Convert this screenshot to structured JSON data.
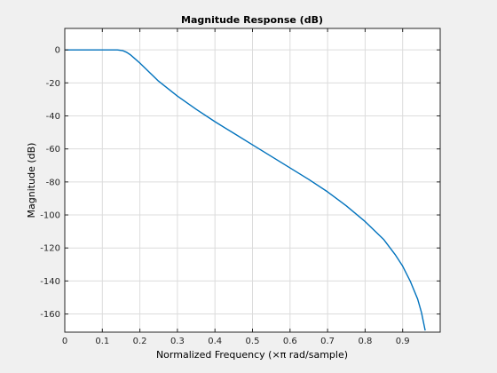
{
  "chart_data": {
    "type": "line",
    "title": "Magnitude Response (dB)",
    "xlabel": "Normalized Frequency (×π rad/sample)",
    "ylabel": "Magnitude (dB)",
    "xlim": [
      0,
      1
    ],
    "ylim": [
      -171,
      13
    ],
    "xticks": [
      0,
      0.1,
      0.2,
      0.3,
      0.4,
      0.5,
      0.6,
      0.7,
      0.8,
      0.9
    ],
    "yticks": [
      0,
      -20,
      -40,
      -60,
      -80,
      -100,
      -120,
      -140,
      -160
    ],
    "grid": true,
    "colors": {
      "line": "#0072bd",
      "axes_bg": "#ffffff",
      "figure_bg": "#f0f0f0",
      "grid": "#dcdcdc"
    },
    "series": [
      {
        "x": [
          0,
          0.05,
          0.1,
          0.14,
          0.155,
          0.165,
          0.175,
          0.185,
          0.2,
          0.225,
          0.25,
          0.3,
          0.35,
          0.4,
          0.45,
          0.5,
          0.55,
          0.6,
          0.65,
          0.7,
          0.75,
          0.8,
          0.85,
          0.88,
          0.9,
          0.92,
          0.94,
          0.95,
          0.96
        ],
        "y": [
          0,
          0,
          0,
          0,
          -0.5,
          -1.5,
          -3,
          -5,
          -8,
          -13.5,
          -19,
          -28,
          -36,
          -43.5,
          -50.5,
          -57.5,
          -64.5,
          -71.5,
          -78.5,
          -86,
          -94.5,
          -104,
          -115,
          -124,
          -131,
          -140,
          -151,
          -159,
          -170
        ]
      }
    ]
  }
}
